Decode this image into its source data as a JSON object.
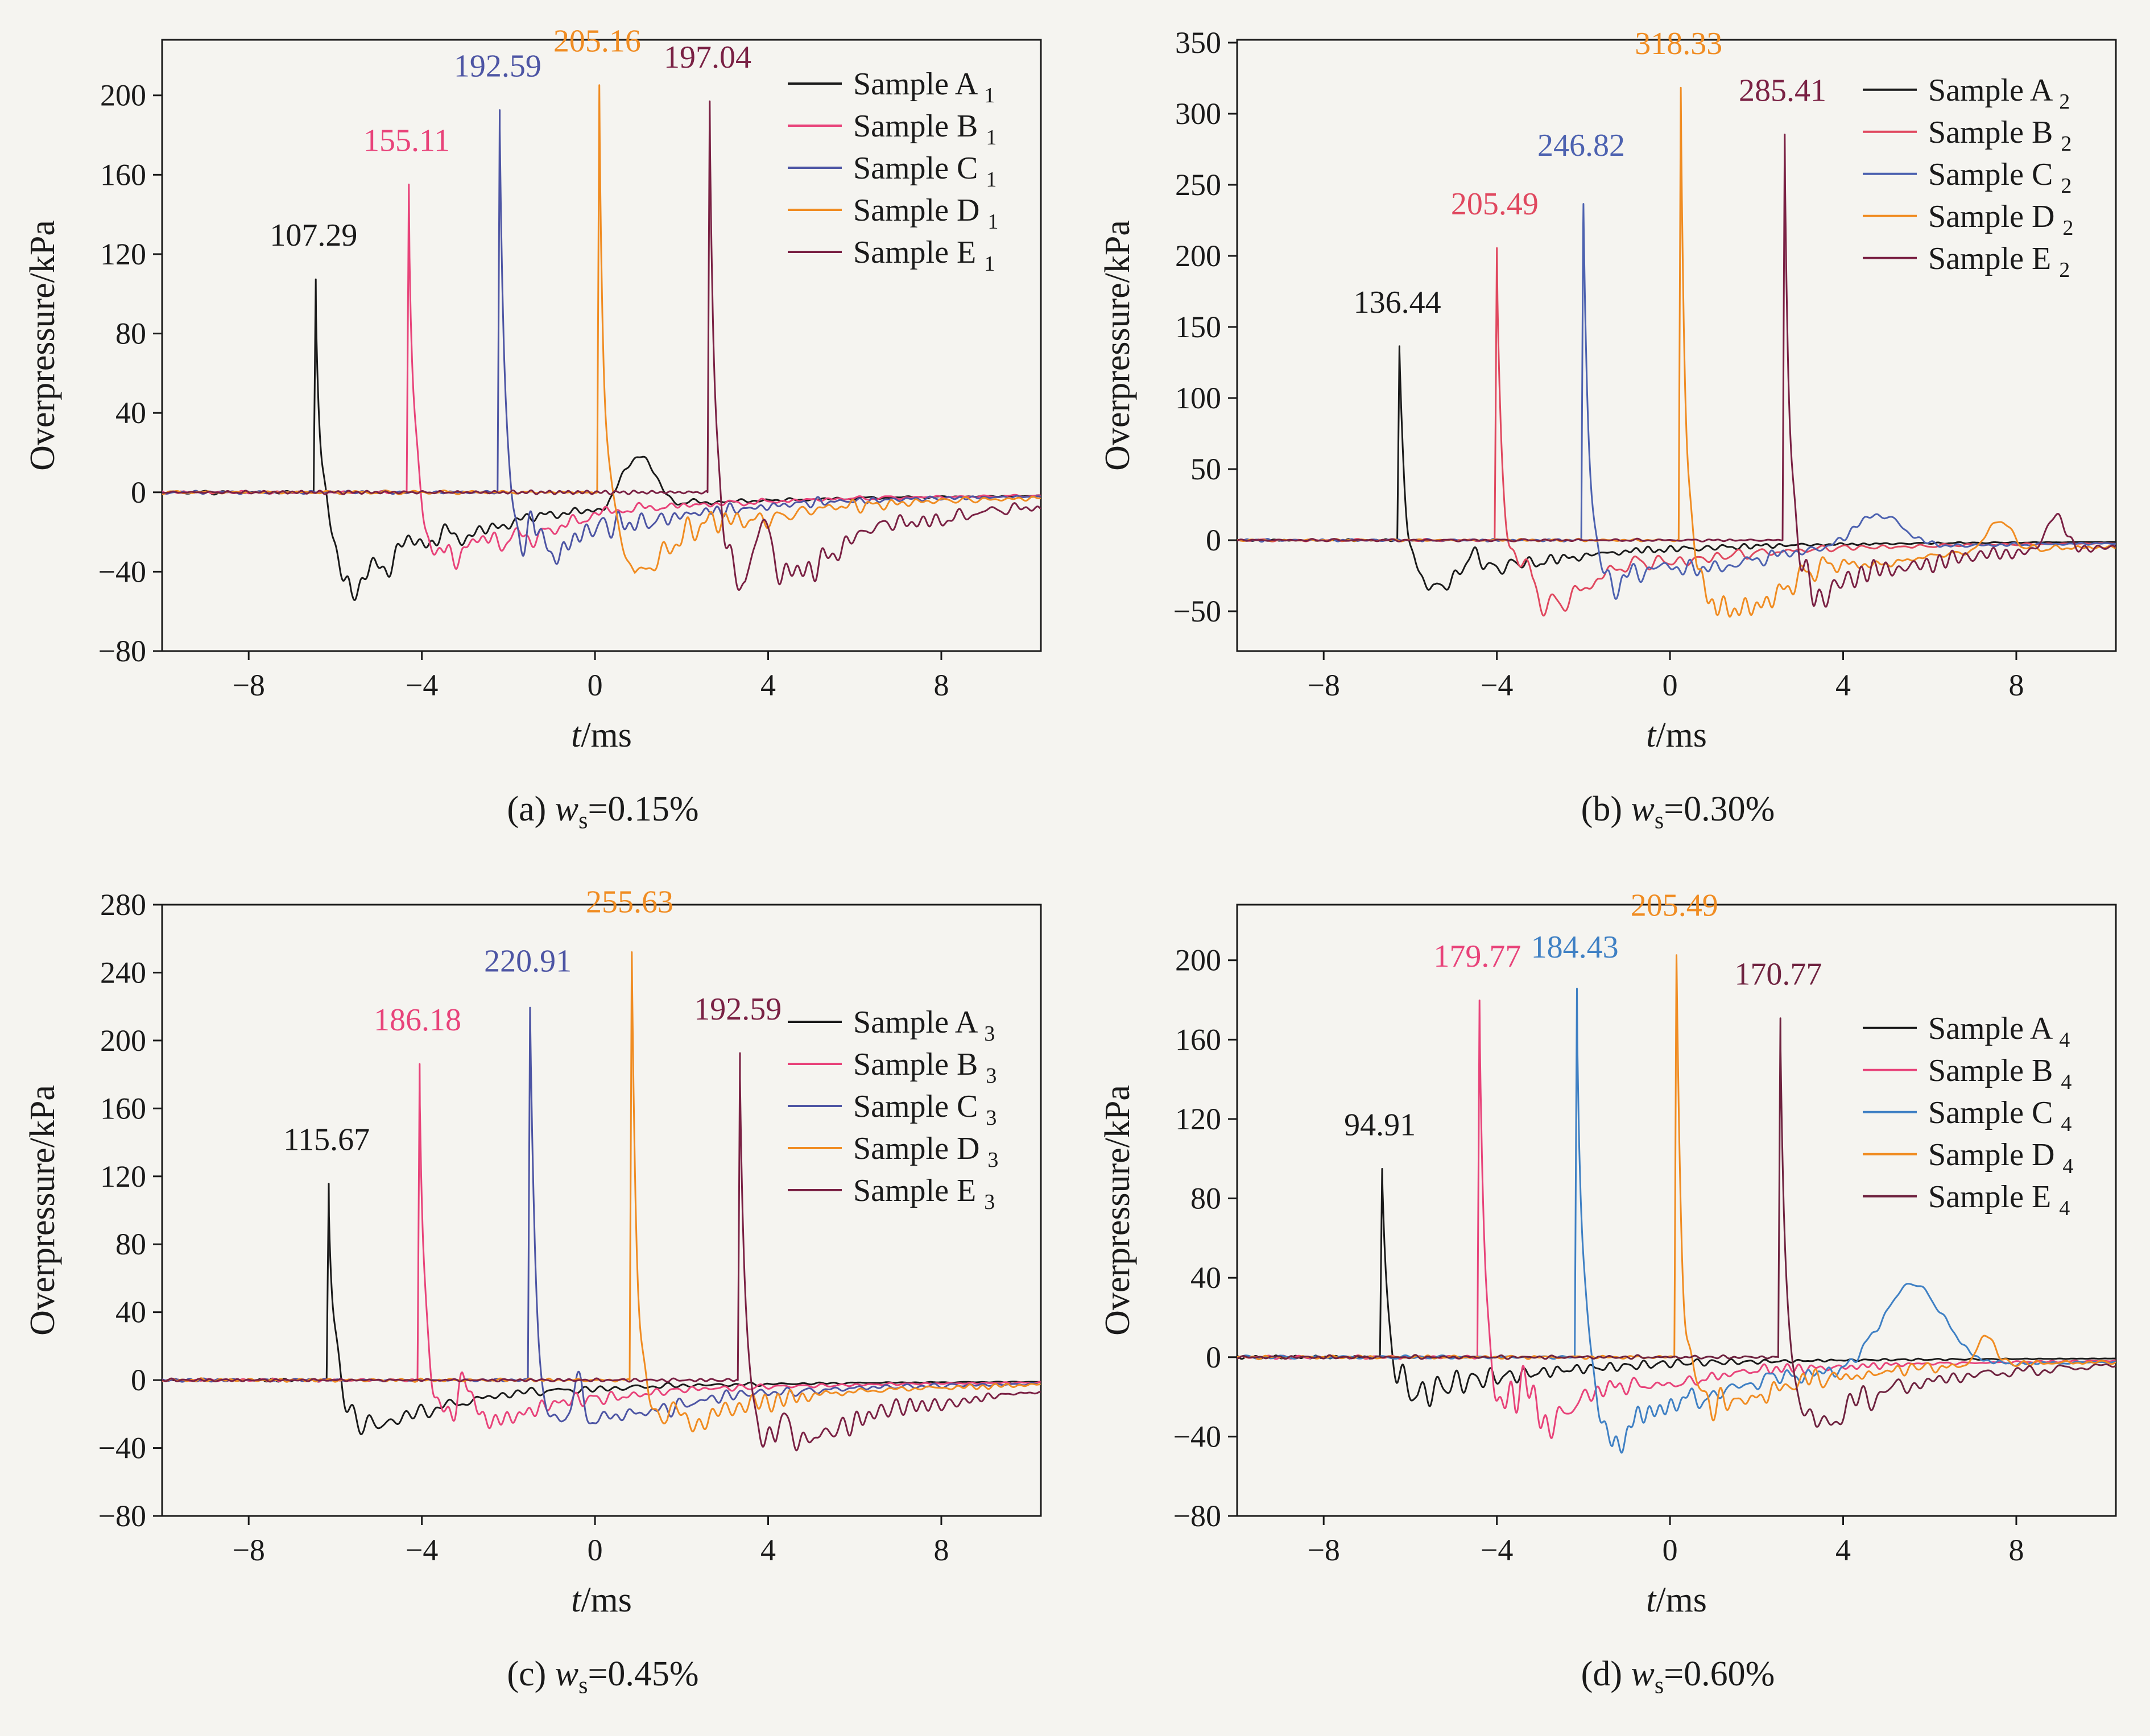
{
  "ylabel": "Overpressure/kPa",
  "xlabel": {
    "var": "t",
    "rest": "/ms"
  },
  "chart_data": [
    {
      "type": "line",
      "caption": {
        "index": "(a) ",
        "var": "w",
        "var_sub": "s",
        "rest": "=0.15%"
      },
      "xlabel": {
        "var": "t",
        "rest": "/ms"
      },
      "ylabel": "Overpressure/kPa",
      "xlim": [
        -10,
        10.3
      ],
      "ylim": [
        -80,
        228
      ],
      "xticks": [
        -8,
        -4,
        0,
        4,
        8
      ],
      "yticks": [
        -80,
        -40,
        0,
        40,
        80,
        120,
        160,
        200
      ],
      "legend_frac": 0.04,
      "series": [
        {
          "name": "Sample A",
          "sub": "1",
          "color": "#1a1a1a",
          "peak_t": -6.5,
          "peak": 107.29,
          "annotation": "107.29",
          "neg": 55,
          "seed": 11,
          "bumps": [
            {
              "t": 1.0,
              "amp": 26,
              "w": 0.5
            }
          ]
        },
        {
          "name": "Sample B",
          "sub": "1",
          "color": "#e8437a",
          "peak_t": -4.35,
          "peak": 155.11,
          "annotation": "155.11",
          "neg": 42,
          "seed": 12,
          "bumps": []
        },
        {
          "name": "Sample C",
          "sub": "1",
          "color": "#4d55a4",
          "peak_t": -2.25,
          "peak": 192.59,
          "annotation": "192.59",
          "neg": 40,
          "seed": 13,
          "bumps": [
            {
              "t": -1.35,
              "amp": 28,
              "w": 0.2
            }
          ]
        },
        {
          "name": "Sample D",
          "sub": "1",
          "color": "#f08c22",
          "peak_t": 0.05,
          "peak": 205.16,
          "annotation": "205.16",
          "neg": 38,
          "seed": 14,
          "bumps": []
        },
        {
          "name": "Sample E",
          "sub": "1",
          "color": "#7a2144",
          "peak_t": 2.6,
          "peak": 197.04,
          "annotation": "197.04",
          "neg": 62,
          "seed": 15,
          "bumps": [
            {
              "t": 3.85,
              "amp": 30,
              "w": 0.25
            }
          ]
        }
      ]
    },
    {
      "type": "line",
      "caption": {
        "index": "(b) ",
        "var": "w",
        "var_sub": "s",
        "rest": "=0.30%"
      },
      "xlabel": {
        "var": "t",
        "rest": "/ms"
      },
      "ylabel": "Overpressure/kPa",
      "xlim": [
        -10,
        10.3
      ],
      "ylim": [
        -78,
        352
      ],
      "xticks": [
        -8,
        -4,
        0,
        4,
        8
      ],
      "yticks": [
        -50,
        0,
        50,
        100,
        150,
        200,
        250,
        300,
        350
      ],
      "legend_frac": 0.05,
      "series": [
        {
          "name": "Sample A",
          "sub": "2",
          "color": "#1a1a1a",
          "peak_t": -6.3,
          "peak": 136.44,
          "annotation": "136.44",
          "neg": 38,
          "seed": 21,
          "bumps": [
            {
              "t": -4.6,
              "amp": 12,
              "w": 0.3
            }
          ]
        },
        {
          "name": "Sample B",
          "sub": "2",
          "color": "#e0485f",
          "peak_t": -4.05,
          "peak": 205.49,
          "annotation": "205.49",
          "neg": 50,
          "seed": 22,
          "bumps": [
            {
              "t": -3.3,
              "amp": 25,
              "w": 0.2
            }
          ]
        },
        {
          "name": "Sample C",
          "sub": "2",
          "color": "#4d62b0",
          "peak_t": -2.05,
          "peak": 246.82,
          "annotation": "246.82",
          "neg": 40,
          "seed": 23,
          "bumps": [
            {
              "t": 4.8,
              "amp": 24,
              "w": 0.8
            }
          ]
        },
        {
          "name": "Sample D",
          "sub": "2",
          "color": "#f08c22",
          "peak_t": 0.2,
          "peak": 318.33,
          "annotation": "318.33",
          "neg": 60,
          "seed": 24,
          "bumps": [
            {
              "t": 7.6,
              "amp": 22,
              "w": 0.4
            }
          ]
        },
        {
          "name": "Sample E",
          "sub": "2",
          "color": "#7a2144",
          "peak_t": 2.6,
          "peak": 285.41,
          "annotation": "285.41",
          "neg": 42,
          "seed": 25,
          "bumps": [
            {
              "t": 8.9,
              "amp": 25,
              "w": 0.3
            }
          ]
        }
      ]
    },
    {
      "type": "line",
      "caption": {
        "index": "(c) ",
        "var": "w",
        "var_sub": "s",
        "rest": "=0.45%"
      },
      "xlabel": {
        "var": "t",
        "rest": "/ms"
      },
      "ylabel": "Overpressure/kPa",
      "xlim": [
        -10,
        10.3
      ],
      "ylim": [
        -80,
        280
      ],
      "xticks": [
        -8,
        -4,
        0,
        4,
        8
      ],
      "yticks": [
        -80,
        -40,
        0,
        40,
        80,
        120,
        160,
        200,
        240,
        280
      ],
      "legend_frac": 0.16,
      "series": [
        {
          "name": "Sample A",
          "sub": "3",
          "color": "#1a1a1a",
          "peak_t": -6.2,
          "peak": 115.67,
          "annotation": "115.67",
          "neg": 30,
          "seed": 31,
          "bumps": []
        },
        {
          "name": "Sample B",
          "sub": "3",
          "color": "#e8437a",
          "peak_t": -4.1,
          "peak": 186.18,
          "annotation": "186.18",
          "neg": 35,
          "seed": 32,
          "bumps": [
            {
              "t": -3.0,
              "amp": 25,
              "w": 0.25
            }
          ]
        },
        {
          "name": "Sample C",
          "sub": "3",
          "color": "#4d55a4",
          "peak_t": -1.55,
          "peak": 220.91,
          "annotation": "220.91",
          "neg": 38,
          "seed": 33,
          "bumps": [
            {
              "t": -0.45,
              "amp": 28,
              "w": 0.2
            }
          ]
        },
        {
          "name": "Sample D",
          "sub": "3",
          "color": "#f08c22",
          "peak_t": 0.8,
          "peak": 255.63,
          "annotation": "255.63",
          "neg": 32,
          "seed": 34,
          "bumps": [
            {
              "t": 1.8,
              "amp": 20,
              "w": 0.25
            }
          ]
        },
        {
          "name": "Sample E",
          "sub": "3",
          "color": "#7a2144",
          "peak_t": 3.3,
          "peak": 192.59,
          "annotation": "192.59",
          "neg": 52,
          "seed": 35,
          "bumps": [
            {
              "t": 4.3,
              "amp": 25,
              "w": 0.25
            }
          ]
        }
      ]
    },
    {
      "type": "line",
      "caption": {
        "index": "(d) ",
        "var": "w",
        "var_sub": "s",
        "rest": "=0.60%"
      },
      "xlabel": {
        "var": "t",
        "rest": "/ms"
      },
      "ylabel": "Overpressure/kPa",
      "xlim": [
        -10,
        10.3
      ],
      "ylim": [
        -80,
        228
      ],
      "xticks": [
        -8,
        -4,
        0,
        4,
        8
      ],
      "yticks": [
        -80,
        -40,
        0,
        40,
        80,
        120,
        160,
        200
      ],
      "legend_frac": 0.17,
      "series": [
        {
          "name": "Sample A",
          "sub": "4",
          "color": "#1a1a1a",
          "peak_t": -6.7,
          "peak": 94.91,
          "annotation": "94.91",
          "neg": 22,
          "seed": 41,
          "bumps": []
        },
        {
          "name": "Sample B",
          "sub": "4",
          "color": "#e8437a",
          "peak_t": -4.45,
          "peak": 179.77,
          "annotation": "179.77",
          "neg": 45,
          "seed": 42,
          "bumps": [
            {
              "t": -3.4,
              "amp": 35,
              "w": 0.35
            }
          ]
        },
        {
          "name": "Sample C",
          "sub": "4",
          "color": "#3f80c4",
          "peak_t": -2.2,
          "peak": 184.43,
          "annotation": "184.43",
          "neg": 45,
          "seed": 43,
          "bumps": [
            {
              "t": 5.6,
              "amp": 42,
              "w": 1.0
            },
            {
              "t": -1.9,
              "amp": 20,
              "w": 0.15
            }
          ]
        },
        {
          "name": "Sample D",
          "sub": "4",
          "color": "#f08c22",
          "peak_t": 0.1,
          "peak": 205.49,
          "annotation": "205.49",
          "neg": 30,
          "seed": 44,
          "bumps": [
            {
              "t": 7.3,
              "amp": 15,
              "w": 0.3
            }
          ]
        },
        {
          "name": "Sample E",
          "sub": "4",
          "color": "#6f2340",
          "peak_t": 2.5,
          "peak": 170.77,
          "annotation": "170.77",
          "neg": 35,
          "seed": 45,
          "bumps": []
        }
      ]
    }
  ]
}
